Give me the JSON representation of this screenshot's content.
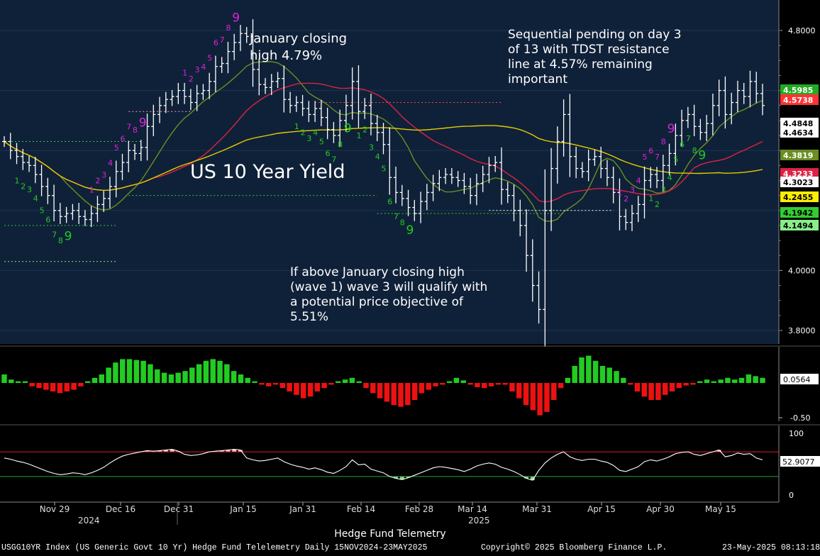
{
  "chart_data": {
    "type": "candlestick",
    "title": "US 10 Year Yield",
    "x_tick_labels": [
      "Nov 29",
      "Dec 16",
      "Dec 31",
      "Jan 15",
      "Jan 31",
      "Feb 14",
      "Feb 28",
      "Mar 14",
      "Mar 31",
      "Apr 15",
      "Apr 30",
      "May 15"
    ],
    "year_labels": [
      "2024",
      "2025"
    ],
    "x_axis_title": "Hedge Fund Telemetry",
    "footer": {
      "left": "USGG10YR Index (US Generic Govt 10 Yr) Hedge Fund Telelemetry  Daily 15NOV2024-23MAY2025",
      "center": "Copyright© 2025 Bloomberg Finance L.P.",
      "right": "23-May-2025 08:13:18"
    },
    "main_panel": {
      "y_tick_labels": [
        "4.8000",
        "4.0000",
        "3.8000"
      ],
      "price_labels": [
        {
          "text": "4.5985",
          "bg": "#22aa22",
          "fg": "#ffffff"
        },
        {
          "text": "4.5738",
          "bg": "#ff3333",
          "fg": "#ffffff"
        },
        {
          "text": "4.4848",
          "bg": "#ffffff",
          "fg": "#000000"
        },
        {
          "text": "4.4634",
          "bg": "#ffffff",
          "fg": "#000000"
        },
        {
          "text": "4.3819",
          "bg": "#6b8e23",
          "fg": "#ffffff"
        },
        {
          "text": "4.3233",
          "bg": "#dd2244",
          "fg": "#ffffff"
        },
        {
          "text": "4.3023",
          "bg": "#ffffff",
          "fg": "#000000"
        },
        {
          "text": "4.2455",
          "bg": "#ffee00",
          "fg": "#000000"
        },
        {
          "text": "4.1942",
          "bg": "#33cc33",
          "fg": "#000000"
        },
        {
          "text": "4.1494",
          "bg": "#88ee88",
          "fg": "#000000"
        }
      ],
      "annotations": [
        "January closing\nhigh 4.79%",
        "Sequential pending on day 3\nof 13 with TDST resistance\nline at 4.57% remaining\nimportant",
        "If above January closing high\n(wave 1) wave 3 will qualify with\na potential price objective of\n5.51%"
      ],
      "ohlc_close": [
        4.43,
        4.4,
        4.38,
        4.36,
        4.35,
        4.32,
        4.28,
        4.25,
        4.2,
        4.18,
        4.19,
        4.2,
        4.18,
        4.17,
        4.19,
        4.22,
        4.24,
        4.28,
        4.33,
        4.36,
        4.4,
        4.39,
        4.41,
        4.48,
        4.52,
        4.55,
        4.57,
        4.58,
        4.6,
        4.58,
        4.56,
        4.59,
        4.6,
        4.63,
        4.68,
        4.69,
        4.73,
        4.76,
        4.79,
        4.78,
        4.67,
        4.62,
        4.61,
        4.63,
        4.64,
        4.57,
        4.55,
        4.56,
        4.54,
        4.52,
        4.54,
        4.51,
        4.47,
        4.45,
        4.5,
        4.55,
        4.63,
        4.53,
        4.55,
        4.49,
        4.46,
        4.42,
        4.31,
        4.26,
        4.24,
        4.21,
        4.19,
        4.23,
        4.26,
        4.29,
        4.31,
        4.32,
        4.31,
        4.3,
        4.28,
        4.25,
        4.29,
        4.32,
        4.35,
        4.36,
        4.27,
        4.25,
        4.2,
        4.15,
        4.05,
        3.95,
        3.87,
        4.2,
        4.34,
        4.43,
        4.52,
        4.38,
        4.34,
        4.33,
        4.37,
        4.38,
        4.34,
        4.31,
        4.26,
        4.18,
        4.16,
        4.19,
        4.22,
        4.3,
        4.32,
        4.3,
        4.35,
        4.39,
        4.45,
        4.5,
        4.52,
        4.48,
        4.46,
        4.49,
        4.55,
        4.6,
        4.52,
        4.56,
        4.6,
        4.58,
        4.63,
        4.59,
        4.55
      ]
    },
    "macd_panel": {
      "y_tick_labels": [
        "0.0564",
        "-0.50"
      ],
      "histogram": [
        0.1,
        0.04,
        0.02,
        0.02,
        -0.04,
        -0.06,
        -0.08,
        -0.1,
        -0.12,
        -0.1,
        -0.08,
        -0.04,
        0.02,
        0.06,
        0.1,
        0.18,
        0.24,
        0.28,
        0.28,
        0.27,
        0.26,
        0.22,
        0.16,
        0.12,
        0.1,
        0.12,
        0.14,
        0.18,
        0.22,
        0.26,
        0.28,
        0.26,
        0.22,
        0.14,
        0.1,
        0.06,
        0.02,
        -0.02,
        -0.04,
        -0.02,
        -0.06,
        -0.1,
        -0.14,
        -0.18,
        -0.16,
        -0.1,
        -0.06,
        -0.02,
        0.02,
        0.04,
        0.06,
        0.02,
        -0.06,
        -0.12,
        -0.18,
        -0.22,
        -0.26,
        -0.28,
        -0.26,
        -0.2,
        -0.12,
        -0.08,
        -0.04,
        -0.02,
        0.02,
        0.06,
        0.03,
        -0.02,
        -0.05,
        -0.06,
        -0.04,
        -0.02,
        -0.02,
        -0.1,
        -0.18,
        -0.26,
        -0.32,
        -0.38,
        -0.34,
        -0.2,
        -0.06,
        0.06,
        0.2,
        0.3,
        0.32,
        0.26,
        0.2,
        0.18,
        0.14,
        0.06,
        -0.02,
        -0.1,
        -0.16,
        -0.2,
        -0.2,
        -0.14,
        -0.1,
        -0.06,
        -0.03,
        -0.02,
        0.02,
        0.04,
        0.02,
        0.04,
        0.06,
        0.04,
        0.06,
        0.1,
        0.08,
        0.06
      ]
    },
    "rsi_panel": {
      "y_tick_labels": [
        "100",
        "52.9077",
        "0"
      ],
      "overbought": 70,
      "oversold": 30,
      "values": [
        60,
        58,
        55,
        53,
        50,
        46,
        42,
        38,
        35,
        33,
        34,
        36,
        35,
        33,
        36,
        40,
        45,
        52,
        58,
        63,
        66,
        68,
        70,
        72,
        71,
        72,
        73,
        74,
        71,
        66,
        64,
        65,
        67,
        70,
        71,
        72,
        73,
        74,
        73,
        60,
        57,
        55,
        56,
        58,
        60,
        54,
        50,
        47,
        45,
        42,
        44,
        41,
        37,
        35,
        40,
        46,
        57,
        49,
        50,
        42,
        39,
        36,
        30,
        27,
        25,
        28,
        32,
        36,
        40,
        44,
        46,
        45,
        43,
        41,
        38,
        42,
        47,
        50,
        52,
        50,
        45,
        42,
        38,
        33,
        27,
        24,
        40,
        52,
        60,
        66,
        70,
        62,
        58,
        56,
        58,
        58,
        55,
        53,
        48,
        40,
        38,
        42,
        46,
        54,
        57,
        55,
        58,
        62,
        67,
        69,
        70,
        66,
        64,
        67,
        70,
        73,
        62,
        64,
        68,
        66,
        67,
        60,
        57
      ]
    },
    "colors": {
      "bg": "#000000",
      "main_bg": "#0f2138",
      "ma_red": "#dd2244",
      "ma_olive": "#6b8e23",
      "ma_yellow": "#e6cc00",
      "td_green": "#22cc22",
      "td_magenta": "#dd22dd",
      "td_red": "#ff2222",
      "hist_pos": "#22cc22",
      "hist_neg": "#ee1111"
    }
  }
}
